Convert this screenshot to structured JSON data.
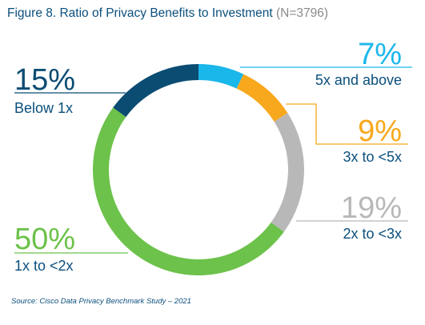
{
  "title": "Figure 8. Ratio of Privacy Benefits to Investment",
  "title_n": "(N=3796)",
  "source": "Source: Cisco Data Privacy Benchmark Study – 2021",
  "chart_data": {
    "type": "pie",
    "donut": true,
    "title": "Figure 8. Ratio of Privacy Benefits to Investment",
    "subtitle": "(N=3796)",
    "slices": [
      {
        "label": "5x and above",
        "value": 7,
        "display": "7%",
        "color": "#1ab7ea"
      },
      {
        "label": "3x to <5x",
        "value": 9,
        "display": "9%",
        "color": "#f8a81d"
      },
      {
        "label": "2x to <3x",
        "value": 19,
        "display": "19%",
        "color": "#b8b8b8"
      },
      {
        "label": "1x to <2x",
        "value": 50,
        "display": "50%",
        "color": "#6cc24a"
      },
      {
        "label": "Below 1x",
        "value": 15,
        "display": "15%",
        "color": "#0b4c73"
      }
    ],
    "legend": "callouts"
  }
}
